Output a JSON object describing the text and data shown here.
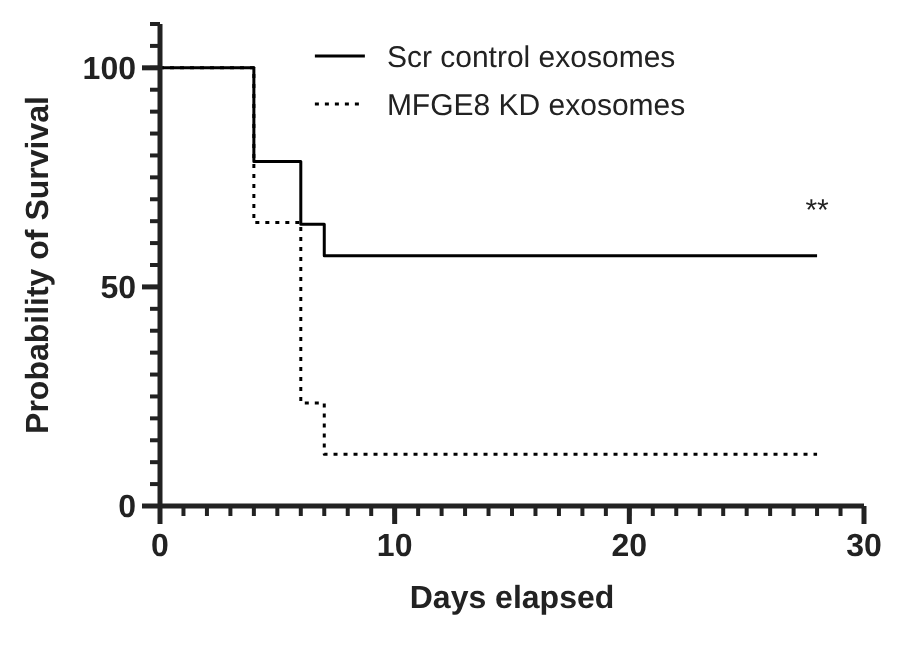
{
  "chart_data": {
    "type": "step",
    "xlabel": "Days elapsed",
    "ylabel": "Probability of Survival",
    "xlim": [
      0,
      30
    ],
    "ylim": [
      0,
      110
    ],
    "xticks": [
      0,
      10,
      20,
      30
    ],
    "yticks": [
      0,
      50,
      100
    ],
    "legend": "top right",
    "annotations": [
      "**"
    ],
    "series": [
      {
        "name": "Scr control exosomes",
        "color": "#000000",
        "line_style": "solid",
        "x": [
          0,
          4,
          6,
          7,
          28
        ],
        "values": [
          100,
          78.6,
          64.3,
          57.1,
          57.1
        ]
      },
      {
        "name": "MFGE8 KD exosomes",
        "color": "#000000",
        "line_style": "dotted",
        "x": [
          0,
          4,
          6,
          7,
          28
        ],
        "values": [
          100,
          64.7,
          23.5,
          11.8,
          11.8
        ]
      }
    ]
  }
}
